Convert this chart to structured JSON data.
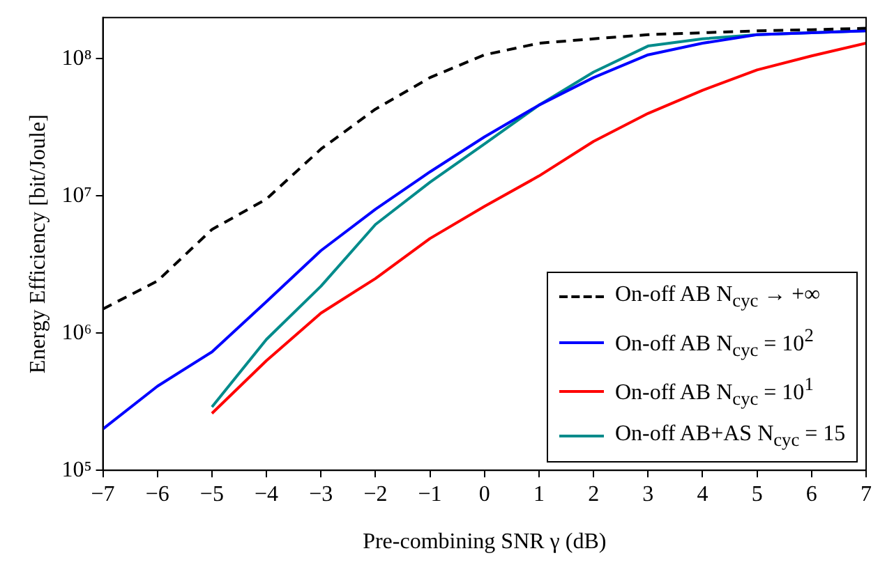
{
  "chart_data": {
    "type": "line",
    "xlabel": "Pre-combining SNR γ (dB)",
    "ylabel": "Energy Efficiency [bit/Joule]",
    "x": [
      -7,
      -6,
      -5,
      -4,
      -3,
      -2,
      -1,
      0,
      1,
      2,
      3,
      4,
      5,
      6,
      7
    ],
    "xlim": [
      -7,
      7
    ],
    "xticks": [
      -7,
      -6,
      -5,
      -4,
      -3,
      -2,
      -1,
      0,
      1,
      2,
      3,
      4,
      5,
      6,
      7
    ],
    "ylim": [
      100000,
      200000000
    ],
    "yticks": [
      {
        "value": 100000,
        "label": "10⁵"
      },
      {
        "value": 1000000,
        "label": "10⁶"
      },
      {
        "value": 10000000,
        "label": "10⁷"
      },
      {
        "value": 100000000,
        "label": "10⁸"
      }
    ],
    "log": true,
    "grid": false,
    "legend": "bottom right",
    "marker": "none",
    "series": [
      {
        "name": "On-off AB N$_{cyc}$ → +∞",
        "color": "#000000",
        "line_style": "dashed",
        "values": [
          1500000,
          2400000,
          5700000,
          9500000,
          22000000,
          43000000,
          73000000,
          107000000,
          130000000,
          140000000,
          150000000,
          155000000,
          160000000,
          163000000,
          167000000
        ]
      },
      {
        "name": "On-off AB N$_{cyc}$ = 10$^{2}$",
        "color": "#0000ff",
        "line_style": "solid",
        "values": [
          200000,
          410000,
          730000,
          1700000,
          4000000,
          8000000,
          15000000,
          27000000,
          46000000,
          73000000,
          107000000,
          130000000,
          150000000,
          155000000,
          160000000
        ]
      },
      {
        "name": "On-off AB N$_{cyc}$ = 10$^{1}$",
        "color": "#ff0000",
        "line_style": "solid",
        "values": [
          null,
          null,
          260000,
          630000,
          1400000,
          2500000,
          4900000,
          8400000,
          14000000,
          25000000,
          40000000,
          59000000,
          83000000,
          105000000,
          130000000
        ]
      },
      {
        "name": "On-off AB+AS N$_{cyc}$ = 15",
        "color": "#008b8b",
        "line_style": "solid",
        "values": [
          null,
          null,
          290000,
          900000,
          2200000,
          6200000,
          12600000,
          24000000,
          46000000,
          80000000,
          124000000,
          140000000,
          150000000,
          155000000,
          160000000
        ]
      }
    ]
  }
}
